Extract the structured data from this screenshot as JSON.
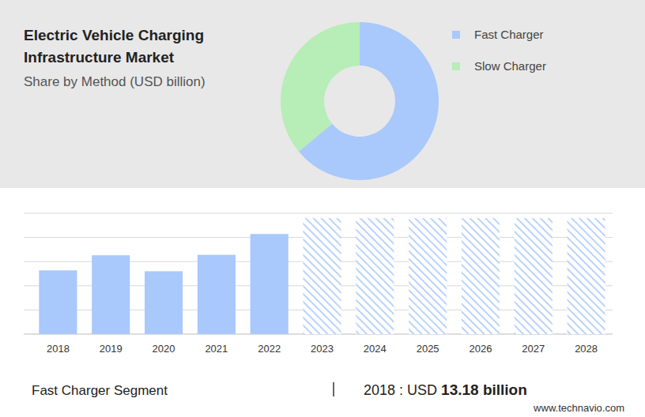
{
  "chart_data": [
    {
      "type": "donut",
      "title": "Electric Vehicle Charging Infrastructure Market",
      "subtitle": "Share by Method (USD billion)",
      "categories": [
        "Fast Charger",
        "Slow Charger"
      ],
      "values": [
        64,
        36
      ],
      "colors": [
        "#a9c8fb",
        "#b7edb7"
      ],
      "legend": "right"
    },
    {
      "type": "bar",
      "title": "Fast Charger Segment",
      "annotation": {
        "label": "2018 : USD",
        "value": "13.18 billion"
      },
      "source": "www.technavio.com",
      "categories": [
        "2018",
        "2019",
        "2020",
        "2021",
        "2022",
        "2023",
        "2024",
        "2025",
        "2026",
        "2027",
        "2028"
      ],
      "values": [
        13.18,
        16.3,
        13.0,
        16.4,
        20.7,
        null,
        null,
        null,
        null,
        null,
        null
      ],
      "color": "#a9c8fb",
      "ylim": [
        0,
        25
      ],
      "yticks": [
        0,
        5,
        10,
        15,
        20,
        25
      ],
      "grid": true,
      "tick_labels": "x"
    }
  ]
}
